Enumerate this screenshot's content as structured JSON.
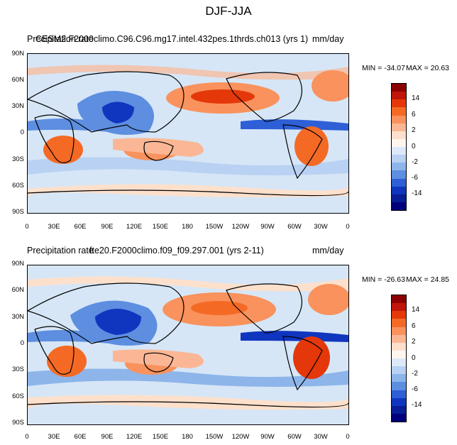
{
  "main_title": "DJF-JJA",
  "colorbar": {
    "colors": [
      "#8b0000",
      "#c0150a",
      "#e4380a",
      "#f46a25",
      "#f9925c",
      "#fbb795",
      "#fde0cc",
      "#fef6ee",
      "#dde9f9",
      "#b9d1f2",
      "#8db5ea",
      "#5d8ee0",
      "#2e5fd6",
      "#1035bf",
      "#081d96",
      "#00007a"
    ],
    "labels": [
      "14",
      "6",
      "2",
      "0",
      "-2",
      "-6",
      "-14"
    ]
  },
  "panels": [
    {
      "left_title": "Precipitation rate",
      "center_title": "CESM2.F2000climo.C96.C96.mg17.intel.432pes.1thrds.ch013 (yrs 1)",
      "units": "mm/day",
      "min_label": "MIN = -34.07",
      "max_label": "MAX =  20.63"
    },
    {
      "left_title": "Precipitation rate",
      "center_title": "fte20.F2000climo.f09_f09.297.001 (yrs 2-11)",
      "units": "mm/day",
      "min_label": "MIN = -26.63",
      "max_label": "MAX =  24.85"
    }
  ],
  "y_ticks": [
    "90N",
    "60N",
    "30N",
    "0",
    "30S",
    "60S",
    "90S"
  ],
  "x_ticks": [
    "0",
    "30E",
    "60E",
    "90E",
    "120E",
    "150E",
    "180",
    "150W",
    "120W",
    "90W",
    "60W",
    "30W",
    "0"
  ]
}
